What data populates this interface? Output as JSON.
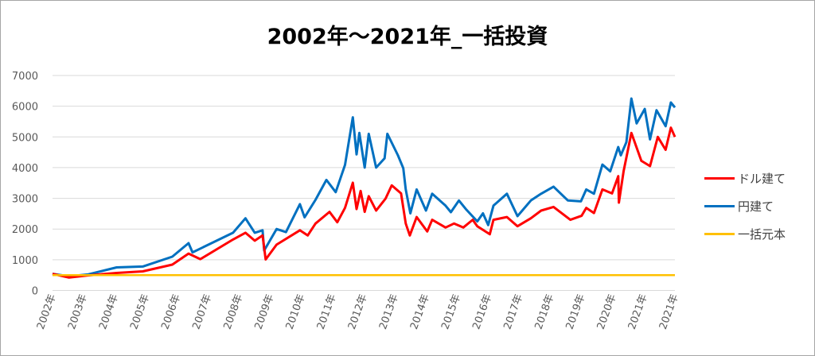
{
  "chart_data": {
    "type": "line",
    "title": "2002年～2021年_一括投資",
    "xlabel": "",
    "ylabel": "",
    "ylim": [
      0,
      7000
    ],
    "yticks": [
      "0",
      "1000",
      "2000",
      "3000",
      "4000",
      "5000",
      "6000",
      "7000"
    ],
    "categories": [
      "2002年",
      "2003年",
      "2004年",
      "2005年",
      "2006年",
      "2007年",
      "2008年",
      "2009年",
      "2010年",
      "2011年",
      "2012年",
      "2013年",
      "2014年",
      "2015年",
      "2016年",
      "2017年",
      "2018年",
      "2019年",
      "2020年",
      "2021年",
      "2021年"
    ],
    "grid": true,
    "legend_position": "right",
    "series": [
      {
        "name": "ドル建て",
        "color": "#ff0000",
        "x": [
          0,
          0.53,
          1.13,
          2.06,
          2.9,
          3.85,
          4.37,
          4.75,
          5.8,
          6.2,
          6.5,
          6.75,
          6.85,
          7.2,
          7.95,
          8.2,
          8.45,
          8.9,
          9.15,
          9.4,
          9.65,
          9.77,
          9.9,
          10.03,
          10.16,
          10.4,
          10.7,
          10.9,
          11.2,
          11.35,
          11.48,
          11.7,
          12.04,
          12.2,
          12.63,
          12.9,
          13.2,
          13.5,
          13.65,
          14.05,
          14.17,
          14.6,
          14.94,
          15.37,
          15.7,
          16.1,
          16.64,
          17.0,
          17.15,
          17.4,
          17.67,
          17.98,
          18.18,
          18.2,
          18.35,
          18.6,
          18.92,
          19.2,
          19.45,
          19.7,
          19.87,
          20
        ],
        "values": [
          540,
          420,
          490,
          570,
          620,
          840,
          1200,
          1020,
          1660,
          1880,
          1620,
          1790,
          1010,
          1490,
          1960,
          1790,
          2180,
          2560,
          2220,
          2690,
          3510,
          2650,
          3240,
          2560,
          3070,
          2600,
          2990,
          3420,
          3160,
          2180,
          1790,
          2390,
          1920,
          2300,
          2050,
          2180,
          2050,
          2300,
          2090,
          1830,
          2300,
          2390,
          2090,
          2350,
          2600,
          2720,
          2300,
          2430,
          2690,
          2520,
          3290,
          3160,
          3720,
          2860,
          3880,
          5130,
          4220,
          4050,
          5000,
          4580,
          5300,
          5000
        ]
      },
      {
        "name": "円建て",
        "color": "#0070c0",
        "x": [
          0,
          0.53,
          1.13,
          2.06,
          2.9,
          3.85,
          4.37,
          4.5,
          5.8,
          6.2,
          6.5,
          6.75,
          6.8,
          7.2,
          7.5,
          7.95,
          8.1,
          8.45,
          8.8,
          9.1,
          9.4,
          9.65,
          9.77,
          9.86,
          10.03,
          10.16,
          10.4,
          10.67,
          10.76,
          11.1,
          11.27,
          11.35,
          11.5,
          11.7,
          12.0,
          12.2,
          12.63,
          12.8,
          13.06,
          13.3,
          13.65,
          13.83,
          14.0,
          14.17,
          14.6,
          14.94,
          15.37,
          15.7,
          16.1,
          16.56,
          16.98,
          17.15,
          17.4,
          17.67,
          17.92,
          18.18,
          18.26,
          18.44,
          18.6,
          18.77,
          19.03,
          19.2,
          19.41,
          19.7,
          19.87,
          20
        ],
        "values": [
          540,
          460,
          520,
          750,
          780,
          1100,
          1540,
          1240,
          1880,
          2350,
          1880,
          1960,
          1300,
          2000,
          1900,
          2810,
          2380,
          2950,
          3600,
          3200,
          4090,
          5640,
          4430,
          5130,
          4000,
          5100,
          4000,
          4300,
          5100,
          4400,
          3980,
          3290,
          2510,
          3290,
          2600,
          3150,
          2760,
          2550,
          2930,
          2630,
          2250,
          2510,
          2130,
          2760,
          3150,
          2420,
          2930,
          3150,
          3380,
          2930,
          2900,
          3290,
          3150,
          4100,
          3880,
          4670,
          4400,
          4830,
          6250,
          5440,
          5910,
          4920,
          5870,
          5350,
          6120,
          5960
        ]
      },
      {
        "name": "一括元本",
        "color": "#ffc000",
        "x": [
          0,
          20
        ],
        "values": [
          500,
          500
        ]
      }
    ]
  }
}
